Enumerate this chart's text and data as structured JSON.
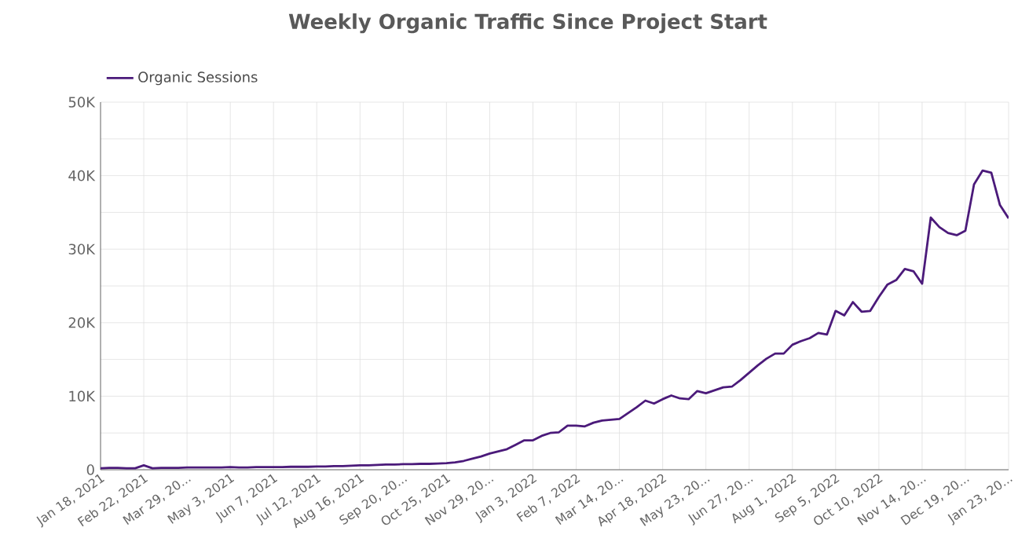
{
  "chart_data": {
    "type": "line",
    "title": "Weekly Organic Traffic Since Project Start",
    "categories": [
      "Jan 18, 2021",
      null,
      null,
      null,
      null,
      "Feb 22, 2021",
      null,
      null,
      null,
      null,
      "Mar 29, 20...",
      null,
      null,
      null,
      null,
      "May 3, 2021",
      null,
      null,
      null,
      null,
      "Jun 7, 2021",
      null,
      null,
      null,
      null,
      "Jul 12, 2021",
      null,
      null,
      null,
      null,
      "Aug 16, 2021",
      null,
      null,
      null,
      null,
      "Sep 20, 20...",
      null,
      null,
      null,
      null,
      "Oct 25, 2021",
      null,
      null,
      null,
      null,
      "Nov 29, 20...",
      null,
      null,
      null,
      null,
      "Jan 3, 2022",
      null,
      null,
      null,
      null,
      "Feb 7, 2022",
      null,
      null,
      null,
      null,
      "Mar 14, 20...",
      null,
      null,
      null,
      null,
      "Apr 18, 2022",
      null,
      null,
      null,
      null,
      "May 23, 20...",
      null,
      null,
      null,
      null,
      "Jun 27, 20...",
      null,
      null,
      null,
      null,
      "Aug 1, 2022",
      null,
      null,
      null,
      null,
      "Sep 5, 2022",
      null,
      null,
      null,
      null,
      "Oct 10, 2022",
      null,
      null,
      null,
      null,
      "Nov 14, 20...",
      null,
      null,
      null,
      null,
      "Dec 19, 20...",
      null,
      null,
      null,
      null,
      "Jan 23, 20..."
    ],
    "series": [
      {
        "name": "Organic Sessions",
        "color": "#4b1a7a",
        "values": [
          200,
          250,
          250,
          200,
          200,
          600,
          200,
          250,
          250,
          250,
          300,
          300,
          300,
          300,
          300,
          350,
          300,
          300,
          350,
          350,
          350,
          350,
          400,
          400,
          400,
          450,
          450,
          500,
          500,
          550,
          600,
          600,
          650,
          700,
          700,
          750,
          750,
          800,
          800,
          850,
          900,
          1000,
          1200,
          1500,
          1800,
          2200,
          2500,
          2800,
          3400,
          4000,
          4000,
          4600,
          5000,
          5100,
          6000,
          6000,
          5900,
          6400,
          6700,
          6800,
          6900,
          7700,
          8500,
          9400,
          9000,
          9600,
          10100,
          9700,
          9600,
          10700,
          10400,
          10800,
          11200,
          11300,
          12200,
          13200,
          14200,
          15100,
          15800,
          15800,
          17000,
          17500,
          17900,
          18600,
          18400,
          21600,
          21000,
          22800,
          21500,
          21600,
          23500,
          25200,
          25800,
          27300,
          27000,
          25300,
          34300,
          33000,
          32200,
          31900,
          32500,
          38800,
          40700,
          40400,
          36000,
          34200
        ]
      }
    ],
    "ylim": [
      0,
      50000
    ],
    "yticks": [
      {
        "value": 0,
        "label": "0"
      },
      {
        "value": 5000,
        "label": null
      },
      {
        "value": 10000,
        "label": "10K"
      },
      {
        "value": 15000,
        "label": null
      },
      {
        "value": 20000,
        "label": "20K"
      },
      {
        "value": 25000,
        "label": null
      },
      {
        "value": 30000,
        "label": "30K"
      },
      {
        "value": 35000,
        "label": null
      },
      {
        "value": 40000,
        "label": "40K"
      },
      {
        "value": 45000,
        "label": null
      },
      {
        "value": 50000,
        "label": "50K"
      }
    ],
    "grid": true,
    "legend": "top left",
    "marker": "none",
    "line_style": "solid"
  }
}
